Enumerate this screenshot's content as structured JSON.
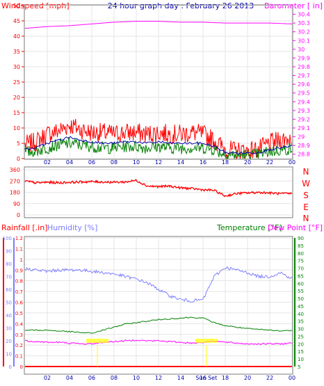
{
  "header": {
    "left_label": "Windspeed [mph]",
    "title": "24 hour graph day : February 26 2013",
    "right_label": "Barometer [ in]"
  },
  "colors": {
    "frame": "#7a7a7a",
    "wind_axis": "#ff0000",
    "baro_axis": "#ff00ff",
    "title": "#0000aa",
    "hum_axis": "#7b7bff",
    "temp_axis": "#008000",
    "rain_axis": "#ff0000",
    "gust": "#ff0000",
    "avg": "#008000",
    "mean": "#0000b0",
    "barometer": "#ff00ff",
    "direction": "#ff0000",
    "humidity": "#8080ff",
    "temperature": "#008000",
    "dewpoint": "#ff00ff",
    "sun": "#ffff00"
  },
  "direction_labels": [
    "N",
    "W",
    "S",
    "E",
    "N"
  ],
  "lower_labels": {
    "rainfall": "Rainfall [.in]",
    "humidity": "Humidity [%]",
    "temperature": "Temperature [°F]",
    "dewpoint": "Dew Point [°F]",
    "sun_label": "Sun Set"
  },
  "chart_data": [
    {
      "type": "line",
      "panel": "wind-barometer",
      "title": "24 hour graph day : February 26 2013",
      "x_ticks": [
        "02",
        "04",
        "06",
        "08",
        "10",
        "12",
        "14",
        "16",
        "18",
        "20",
        "22",
        "00"
      ],
      "y_left_label": "Windspeed [mph]",
      "y_left_ticks": [
        0,
        5,
        10,
        15,
        20,
        25,
        30,
        35,
        40,
        45,
        50
      ],
      "y_left_range": [
        0,
        50
      ],
      "y_right_label": "Barometer [ in]",
      "y_right_ticks": [
        "28.8",
        "28.9",
        "29",
        "29.1",
        "29.2",
        "29.3",
        "29.4",
        "29.5",
        "29.6",
        "29.7",
        "29.8",
        "29.9",
        "30",
        "30.1",
        "30.2",
        "30.3",
        "30.4"
      ],
      "y_right_range": [
        28.75,
        30.5
      ],
      "series": [
        {
          "key": "gust",
          "hours": [
            0,
            1,
            2,
            3,
            4,
            5,
            6,
            7,
            8,
            9,
            10,
            11,
            12,
            13,
            14,
            15,
            16,
            17,
            18,
            19,
            20,
            21,
            22,
            23,
            24
          ],
          "values": [
            4.5,
            5.5,
            8,
            9,
            11,
            9.5,
            8.5,
            8.5,
            8,
            8.5,
            8.5,
            8,
            8.5,
            8,
            8,
            8.5,
            8,
            6,
            3,
            2.5,
            2.5,
            3,
            5,
            6,
            7
          ]
        },
        {
          "key": "mean",
          "hours": [
            0,
            1,
            2,
            3,
            4,
            5,
            6,
            7,
            8,
            9,
            10,
            11,
            12,
            13,
            14,
            15,
            16,
            17,
            18,
            19,
            20,
            21,
            22,
            23,
            24
          ],
          "values": [
            3,
            3.5,
            5,
            6,
            7,
            6,
            5.5,
            5,
            5,
            5.5,
            5.5,
            5,
            5.5,
            5,
            5,
            5,
            5,
            4,
            2,
            1.8,
            1.8,
            2,
            3,
            3.5,
            4
          ]
        },
        {
          "key": "avg",
          "hours": [
            0,
            1,
            2,
            3,
            4,
            5,
            6,
            7,
            8,
            9,
            10,
            11,
            12,
            13,
            14,
            15,
            16,
            17,
            18,
            19,
            20,
            21,
            22,
            23,
            24
          ],
          "values": [
            2,
            2.5,
            3.5,
            4.5,
            5,
            4.5,
            4,
            3.5,
            3.5,
            4,
            4,
            3.5,
            4,
            3.5,
            3.5,
            3.5,
            3.5,
            3,
            1.3,
            1.2,
            1.2,
            1.5,
            2.3,
            2.8,
            3.2
          ]
        },
        {
          "key": "barometer",
          "hours": [
            0,
            2,
            4,
            6,
            8,
            10,
            12,
            14,
            16,
            18,
            20,
            22,
            24
          ],
          "values": [
            30.24,
            30.26,
            30.27,
            30.29,
            30.31,
            30.32,
            30.32,
            30.31,
            30.31,
            30.3,
            30.3,
            30.3,
            30.29
          ]
        }
      ]
    },
    {
      "type": "line",
      "panel": "wind-direction",
      "y_ticks": [
        0,
        90,
        180,
        270,
        360
      ],
      "y_range": [
        0,
        360
      ],
      "series": [
        {
          "key": "direction",
          "hours": [
            0,
            1,
            2,
            3,
            4,
            5,
            6,
            7,
            8,
            9,
            10,
            11,
            12,
            13,
            14,
            15,
            16,
            17,
            18,
            19,
            20,
            21,
            22,
            23,
            24
          ],
          "values": [
            270,
            255,
            260,
            255,
            260,
            262,
            265,
            262,
            260,
            262,
            275,
            230,
            225,
            230,
            215,
            210,
            200,
            195,
            150,
            170,
            175,
            180,
            175,
            168,
            170
          ]
        }
      ]
    },
    {
      "type": "line",
      "panel": "rain-humidity-temperature",
      "x_ticks": [
        "02",
        "04",
        "06",
        "08",
        "10",
        "12",
        "14",
        "16",
        "18",
        "20",
        "22",
        "00"
      ],
      "rain_ticks": [
        "0",
        "0.1",
        "0.2",
        "0.3",
        "0.4",
        "0.5",
        "0.6",
        "0.7",
        "0.8",
        "0.9",
        "1",
        "1.1",
        "1.2"
      ],
      "rain_range": [
        0,
        1.2
      ],
      "humidity_ticks": [
        0,
        10,
        20,
        30,
        40,
        50,
        60,
        70,
        80,
        90,
        100
      ],
      "humidity_range": [
        0,
        100
      ],
      "temp_ticks": [
        5,
        10,
        15,
        20,
        25,
        30,
        35,
        40,
        45,
        50,
        55,
        60,
        65,
        70,
        75,
        80,
        85,
        90
      ],
      "temp_range": [
        5,
        90
      ],
      "sun_events_hours": [
        6.5,
        16.3
      ],
      "series": [
        {
          "key": "humidity",
          "hours": [
            0,
            1,
            2,
            3,
            4,
            5,
            6,
            7,
            8,
            9,
            10,
            11,
            12,
            13,
            14,
            15,
            16,
            17,
            18,
            19,
            20,
            21,
            22,
            23,
            24
          ],
          "values": [
            76,
            75,
            74,
            75,
            75,
            75,
            74,
            73,
            72,
            70,
            68,
            65,
            60,
            55,
            52,
            51,
            52,
            70,
            77,
            75,
            73,
            70,
            70,
            73,
            68
          ]
        },
        {
          "key": "temperature",
          "hours": [
            0,
            1,
            2,
            3,
            4,
            5,
            6,
            7,
            8,
            9,
            10,
            11,
            12,
            13,
            14,
            15,
            16,
            17,
            18,
            19,
            20,
            21,
            22,
            23,
            24
          ],
          "values": [
            29,
            29,
            29,
            28.5,
            28,
            27.5,
            27,
            29,
            31,
            33,
            34,
            35,
            36,
            36.5,
            37,
            37.5,
            37,
            34,
            32,
            31,
            30,
            29.5,
            29,
            28.5,
            29
          ]
        },
        {
          "key": "dewpoint",
          "hours": [
            0,
            1,
            2,
            3,
            4,
            5,
            6,
            7,
            8,
            9,
            10,
            11,
            12,
            13,
            14,
            15,
            16,
            17,
            18,
            19,
            20,
            21,
            22,
            23,
            24
          ],
          "values": [
            22,
            21.5,
            21,
            21,
            20.5,
            20,
            20,
            21,
            21.5,
            22,
            22.5,
            22,
            22,
            21.5,
            21,
            20.5,
            21,
            22,
            21,
            20.5,
            20,
            20,
            20,
            20,
            20.5
          ]
        },
        {
          "key": "rainfall",
          "hours": [
            0,
            24
          ],
          "values": [
            0,
            0
          ]
        }
      ]
    }
  ]
}
